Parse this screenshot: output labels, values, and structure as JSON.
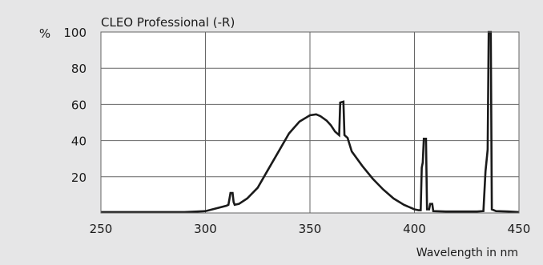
{
  "chart_data": {
    "type": "line",
    "title": "CLEO Professional (-R)",
    "xlabel": "Wavelength in nm",
    "ylabel": "%",
    "xlim": [
      250,
      450
    ],
    "ylim": [
      0,
      100
    ],
    "x_ticks": [
      250,
      300,
      350,
      400,
      450
    ],
    "y_ticks": [
      20,
      40,
      60,
      80,
      100
    ],
    "grid": true,
    "colors": {
      "background": "#e6e6e7",
      "plot_area": "#ffffff",
      "line": "#1a1a1a",
      "grid": "#666666"
    },
    "series": [
      {
        "points": [
          [
            250,
            0.5
          ],
          [
            290,
            0.5
          ],
          [
            300,
            1.0
          ],
          [
            305,
            2.5
          ],
          [
            310,
            4.0
          ],
          [
            311,
            4.5
          ],
          [
            312,
            11.0
          ],
          [
            313,
            11.0
          ],
          [
            313.5,
            6.0
          ],
          [
            314,
            4.5
          ],
          [
            316,
            5.0
          ],
          [
            320,
            8.0
          ],
          [
            325,
            14.0
          ],
          [
            330,
            24.0
          ],
          [
            335,
            34.0
          ],
          [
            340,
            44.0
          ],
          [
            345,
            50.5
          ],
          [
            350,
            54.0
          ],
          [
            353,
            54.5
          ],
          [
            355,
            53.5
          ],
          [
            358,
            51.0
          ],
          [
            360,
            48.5
          ],
          [
            362,
            45.0
          ],
          [
            364,
            43.0
          ],
          [
            364.5,
            61.0
          ],
          [
            366,
            61.5
          ],
          [
            366.5,
            43.0
          ],
          [
            368,
            41.5
          ],
          [
            370,
            34.0
          ],
          [
            375,
            26.0
          ],
          [
            380,
            19.0
          ],
          [
            385,
            13.0
          ],
          [
            390,
            8.0
          ],
          [
            395,
            4.5
          ],
          [
            400,
            2.0
          ],
          [
            402,
            1.5
          ],
          [
            403,
            1.5
          ],
          [
            403.5,
            25.0
          ],
          [
            404,
            28.0
          ],
          [
            404.5,
            41.0
          ],
          [
            405.5,
            41.0
          ],
          [
            406,
            2.0
          ],
          [
            407,
            2.0
          ],
          [
            407.5,
            5.0
          ],
          [
            408.5,
            5.0
          ],
          [
            409,
            1.0
          ],
          [
            415,
            0.8
          ],
          [
            430,
            0.8
          ],
          [
            433,
            1.0
          ],
          [
            434,
            23.0
          ],
          [
            435,
            35.0
          ],
          [
            435.5,
            100.0
          ],
          [
            436.5,
            100.0
          ],
          [
            437,
            2.0
          ],
          [
            439,
            1.0
          ],
          [
            445,
            0.8
          ],
          [
            450,
            0.5
          ]
        ]
      }
    ]
  }
}
